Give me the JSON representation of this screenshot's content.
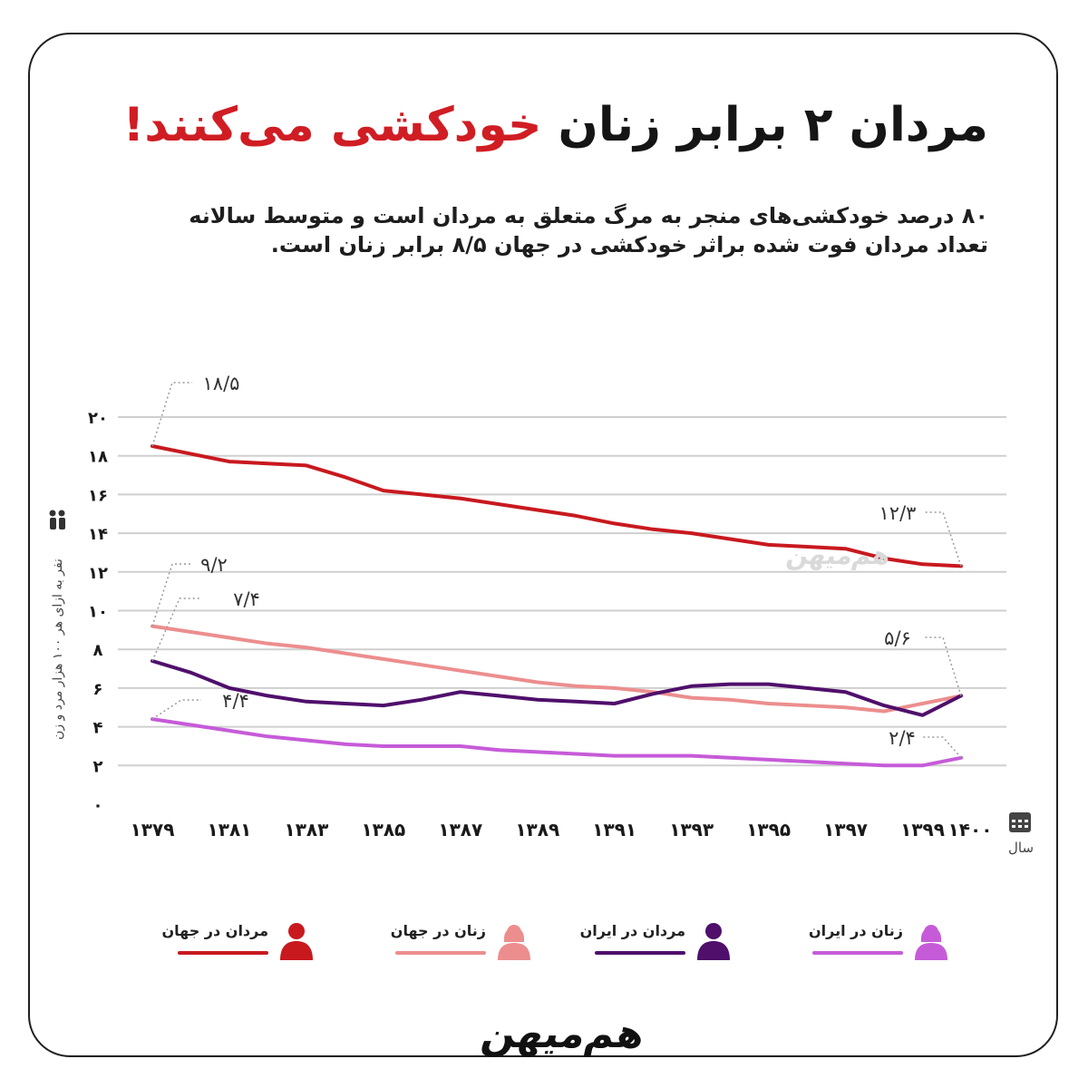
{
  "title": {
    "part1": "مردان ۲ برابر زنان",
    "part2": "خودکشی می‌کنند!"
  },
  "subtitle": {
    "line1": "۸۰ درصد خودکشی‌های منجر به مرگ متعلق به مردان است و متوسط سالانه",
    "line2": "تعداد مردان فوت شده براثر خودکشی در جهان ۸/۵ برابر زنان است."
  },
  "colors": {
    "men_world": "#c8191f",
    "women_world": "#ec8e8e",
    "men_iran": "#4f0f6b",
    "women_iran": "#c65bd8",
    "accent": "#d01d23",
    "grid": "#cfcfcf"
  },
  "icons": {
    "y_axis": "people-icon",
    "x_axis": "calendar-icon",
    "legend": "person-silhouette-icon"
  },
  "chart_data": {
    "type": "line",
    "title": "مردان ۲ برابر زنان خودکشی می‌کنند!",
    "ylabel": "نفر به ازای هر ۱۰۰ هزار مرد و زن",
    "xlabel": "سال",
    "ylim": [
      0,
      20
    ],
    "grid": true,
    "legend_position": "bottom",
    "x": [
      1379,
      1380,
      1381,
      1382,
      1383,
      1384,
      1385,
      1386,
      1387,
      1388,
      1389,
      1390,
      1391,
      1392,
      1393,
      1394,
      1395,
      1396,
      1397,
      1398,
      1399,
      1400
    ],
    "x_tick_labels": [
      "۱۳۷۹",
      "۱۳۸۱",
      "۱۳۸۳",
      "۱۳۸۵",
      "۱۳۸۷",
      "۱۳۸۹",
      "۱۳۹۱",
      "۱۳۹۳",
      "۱۳۹۵",
      "۱۳۹۷",
      "۱۳۹۹",
      "۱۴۰۰"
    ],
    "y_tick_labels": [
      "۰",
      "۲",
      "۴",
      "۶",
      "۸",
      "۱۰",
      "۱۲",
      "۱۴",
      "۱۶",
      "۱۸",
      "۲۰"
    ],
    "series": [
      {
        "name": "مردان در جهان",
        "values": [
          18.5,
          18.1,
          17.7,
          17.6,
          17.5,
          16.9,
          16.2,
          16.0,
          15.8,
          15.5,
          15.2,
          14.9,
          14.5,
          14.2,
          14.0,
          13.7,
          13.4,
          13.3,
          13.2,
          12.7,
          12.4,
          12.3
        ]
      },
      {
        "name": "زنان در جهان",
        "values": [
          9.2,
          8.9,
          8.6,
          8.3,
          8.1,
          7.8,
          7.5,
          7.2,
          6.9,
          6.6,
          6.3,
          6.1,
          6.0,
          5.8,
          5.5,
          5.4,
          5.2,
          5.1,
          5.0,
          4.8,
          5.2,
          5.6
        ]
      },
      {
        "name": "مردان در ایران",
        "values": [
          7.4,
          6.8,
          6.0,
          5.6,
          5.3,
          5.2,
          5.1,
          5.4,
          5.8,
          5.6,
          5.4,
          5.3,
          5.2,
          5.7,
          6.1,
          6.2,
          6.2,
          6.0,
          5.8,
          5.1,
          4.6,
          5.6
        ]
      },
      {
        "name": "زنان در ایران",
        "values": [
          4.4,
          4.1,
          3.8,
          3.5,
          3.3,
          3.1,
          3.0,
          3.0,
          3.0,
          2.8,
          2.7,
          2.6,
          2.5,
          2.5,
          2.5,
          2.4,
          2.3,
          2.2,
          2.1,
          2.0,
          2.0,
          2.4
        ]
      }
    ],
    "annotations": [
      {
        "text": "۱۸/۵",
        "x": 1379,
        "y": 18.5,
        "series": "مردان در جهان"
      },
      {
        "text": "۱۲/۳",
        "x": 1400,
        "y": 12.3,
        "series": "مردان در جهان"
      },
      {
        "text": "۹/۲",
        "x": 1379,
        "y": 9.2,
        "series": "زنان در جهان"
      },
      {
        "text": "۷/۴",
        "x": 1379,
        "y": 7.4,
        "series": "مردان در ایران"
      },
      {
        "text": "۵/۶",
        "x": 1400,
        "y": 5.6,
        "series": "مردان در ایران"
      },
      {
        "text": "۴/۴",
        "x": 1379,
        "y": 4.4,
        "series": "زنان در ایران"
      },
      {
        "text": "۲/۴",
        "x": 1400,
        "y": 2.4,
        "series": "زنان در ایران"
      }
    ]
  },
  "legend": {
    "men_world": "مردان در جهان",
    "women_world": "زنان در جهان",
    "men_iran": "مردان در ایران",
    "women_iran": "زنان در ایران"
  },
  "brand": {
    "logo_text": "هم‌میهن"
  }
}
